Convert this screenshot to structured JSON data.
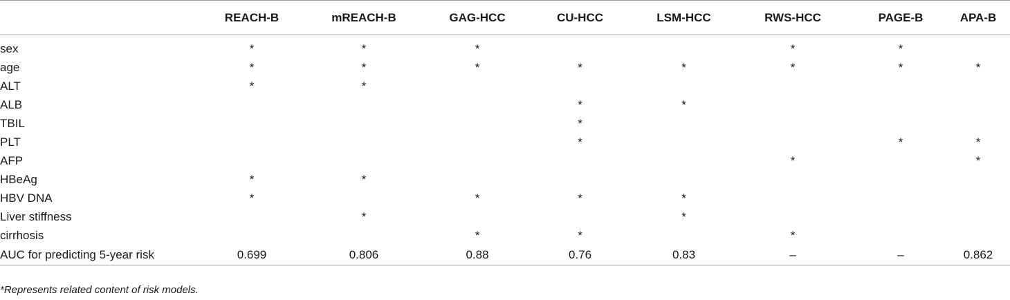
{
  "table": {
    "columns": [
      "",
      "REACH-B",
      "mREACH-B",
      "GAG-HCC",
      "CU-HCC",
      "LSM-HCC",
      "RWS-HCC",
      "PAGE-B",
      "APA-B"
    ],
    "rows": [
      [
        "sex",
        "*",
        "*",
        "*",
        "",
        "",
        "*",
        "*",
        ""
      ],
      [
        "age",
        "*",
        "*",
        "*",
        "*",
        "*",
        "*",
        "*",
        "*"
      ],
      [
        "ALT",
        "*",
        "*",
        "",
        "",
        "",
        "",
        "",
        ""
      ],
      [
        "ALB",
        "",
        "",
        "",
        "*",
        "*",
        "",
        "",
        ""
      ],
      [
        "TBIL",
        "",
        "",
        "",
        "*",
        "",
        "",
        "",
        ""
      ],
      [
        "PLT",
        "",
        "",
        "",
        "*",
        "",
        "",
        "*",
        "*"
      ],
      [
        "AFP",
        "",
        "",
        "",
        "",
        "",
        "*",
        "",
        "*"
      ],
      [
        "HBeAg",
        "*",
        "*",
        "",
        "",
        "",
        "",
        "",
        ""
      ],
      [
        "HBV DNA",
        "*",
        "",
        "*",
        "*",
        "*",
        "",
        "",
        ""
      ],
      [
        "Liver stiffness",
        "",
        "*",
        "",
        "",
        "*",
        "",
        "",
        ""
      ],
      [
        "cirrhosis",
        "",
        "",
        "*",
        "*",
        "",
        "*",
        "",
        ""
      ],
      [
        "AUC for predicting 5-year risk",
        "0.699",
        "0.806",
        "0.88",
        "0.76",
        "0.83",
        "–",
        "–",
        "0.862"
      ]
    ]
  },
  "footnote": "*Represents related content of risk models."
}
